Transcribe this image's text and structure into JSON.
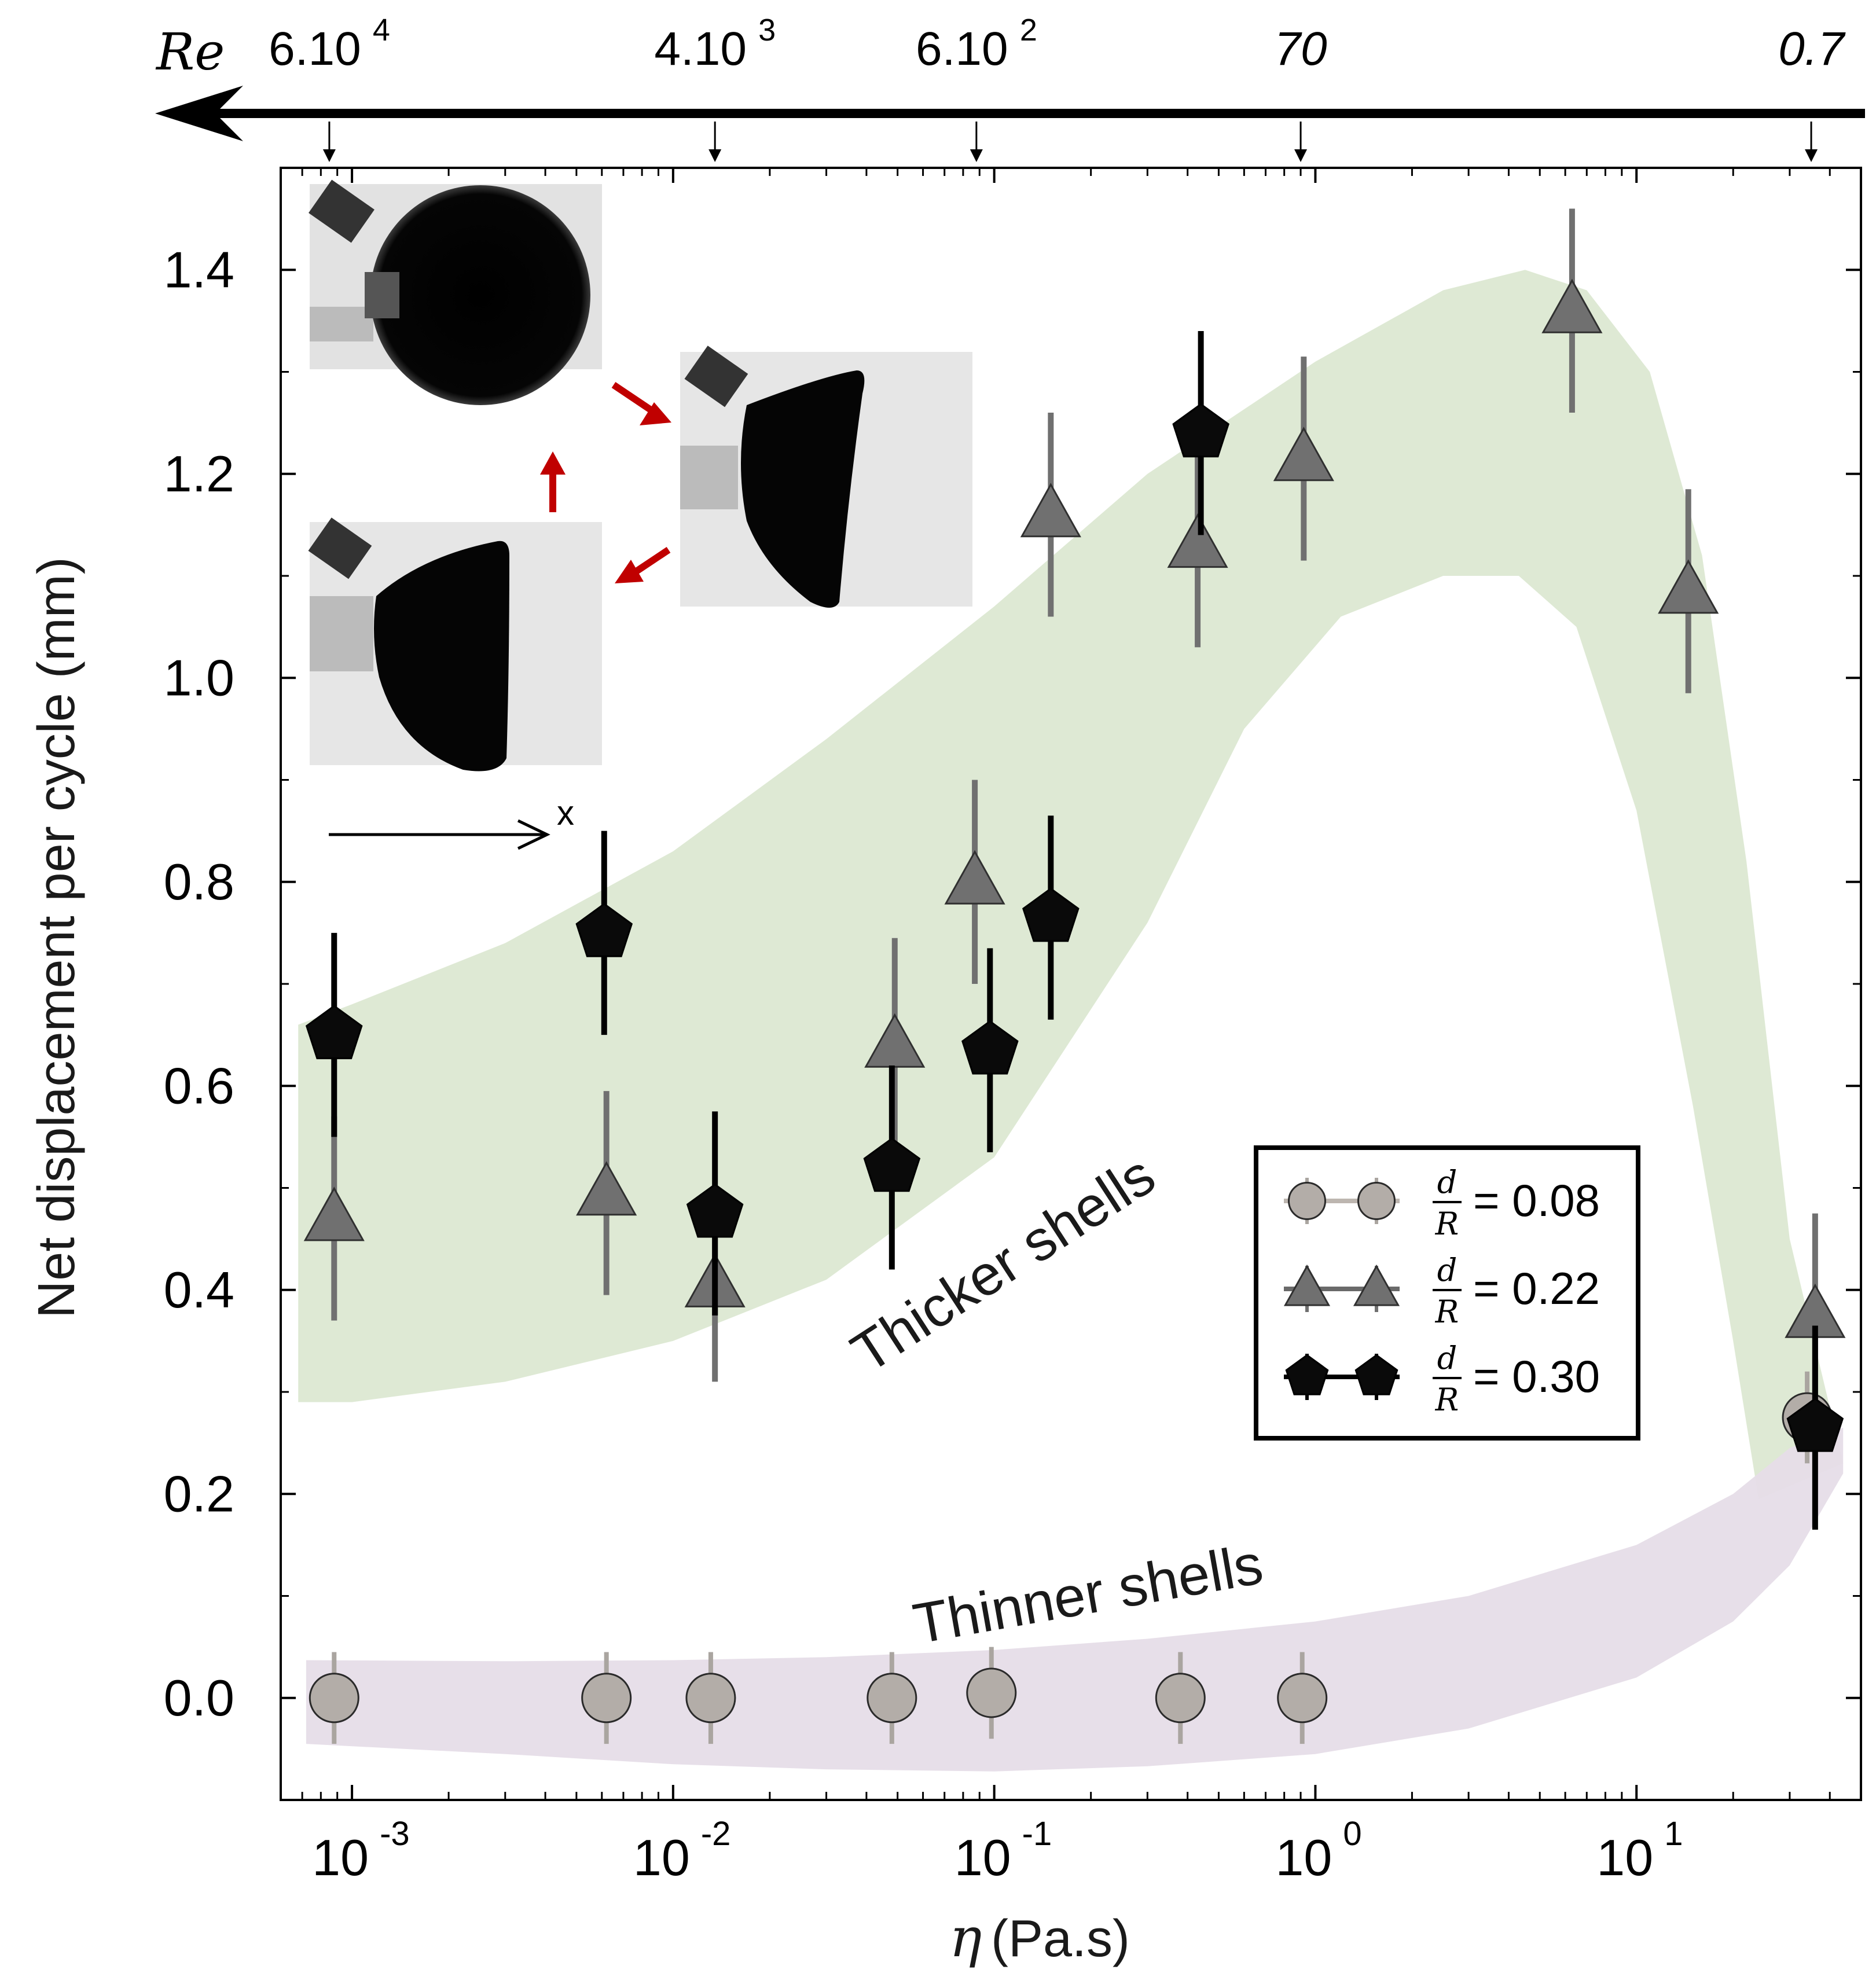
{
  "colors": {
    "thick_band": "#dce8d2",
    "thin_band": "#e6dde8",
    "circle_fill": "#b3ada8",
    "circle_err": "#aaa5a0",
    "triangle_fill": "#707070",
    "triangle_err": "#707070",
    "pentagon_fill": "#0a0a0a",
    "pentagon_err": "#000000",
    "red_arrow": "#c00000"
  },
  "chart_data": {
    "type": "scatter",
    "xscale": "log",
    "xlim": [
      0.0006,
      50
    ],
    "ylim": [
      -0.1,
      1.5
    ],
    "xlabel_symbol": "η",
    "xlabel_units": "(Pa.s)",
    "ylabel": "Net displacement per cycle (mm)",
    "yticks": [
      {
        "v": 0.0,
        "label": "0.0"
      },
      {
        "v": 0.2,
        "label": "0.2"
      },
      {
        "v": 0.4,
        "label": "0.4"
      },
      {
        "v": 0.6,
        "label": "0.6"
      },
      {
        "v": 0.8,
        "label": "0.8"
      },
      {
        "v": 1.0,
        "label": "1.0"
      },
      {
        "v": 1.2,
        "label": "1.2"
      },
      {
        "v": 1.4,
        "label": "1.4"
      }
    ],
    "xticks": [
      {
        "v": 0.001,
        "base": "10",
        "exp": "-3"
      },
      {
        "v": 0.01,
        "base": "10",
        "exp": "-2"
      },
      {
        "v": 0.1,
        "base": "10",
        "exp": "-1"
      },
      {
        "v": 1,
        "base": "10",
        "exp": "0"
      },
      {
        "v": 10,
        "base": "10",
        "exp": "1"
      }
    ],
    "re_axis": {
      "label": "Re",
      "ticks": [
        {
          "x": 0.00085,
          "base": "6.10",
          "exp": "4",
          "italic": false
        },
        {
          "x": 0.0135,
          "base": "4.10",
          "exp": "3",
          "italic": false
        },
        {
          "x": 0.088,
          "base": "6.10",
          "exp": "2",
          "italic": false
        },
        {
          "x": 0.9,
          "base": "70",
          "exp": "",
          "italic": true
        },
        {
          "x": 35,
          "base": "0.7",
          "exp": "",
          "italic": true
        }
      ]
    },
    "series": [
      {
        "name": "d/R = 0.08",
        "marker": "circle",
        "points": [
          {
            "x": 0.00088,
            "y": 0.0,
            "err": 0.045
          },
          {
            "x": 0.0062,
            "y": 0.0,
            "err": 0.045
          },
          {
            "x": 0.0131,
            "y": 0.0,
            "err": 0.045
          },
          {
            "x": 0.048,
            "y": 0.0,
            "err": 0.045
          },
          {
            "x": 0.098,
            "y": 0.005,
            "err": 0.045
          },
          {
            "x": 0.38,
            "y": 0.0,
            "err": 0.045
          },
          {
            "x": 0.91,
            "y": 0.0,
            "err": 0.045
          },
          {
            "x": 34,
            "y": 0.275,
            "err": 0.045
          }
        ]
      },
      {
        "name": "d/R = 0.22",
        "marker": "triangle",
        "points": [
          {
            "x": 0.00088,
            "y": 0.47,
            "err": 0.1
          },
          {
            "x": 0.0062,
            "y": 0.495,
            "err": 0.1
          },
          {
            "x": 0.0135,
            "y": 0.405,
            "err": 0.095
          },
          {
            "x": 0.049,
            "y": 0.64,
            "err": 0.105
          },
          {
            "x": 0.087,
            "y": 0.8,
            "err": 0.1
          },
          {
            "x": 0.15,
            "y": 1.16,
            "err": 0.1
          },
          {
            "x": 0.43,
            "y": 1.13,
            "err": 0.1
          },
          {
            "x": 0.92,
            "y": 1.215,
            "err": 0.1
          },
          {
            "x": 6.3,
            "y": 1.36,
            "err": 0.1
          },
          {
            "x": 14.5,
            "y": 1.085,
            "err": 0.1
          },
          {
            "x": 36,
            "y": 0.375,
            "err": 0.1
          }
        ]
      },
      {
        "name": "d/R = 0.30",
        "marker": "pentagon",
        "points": [
          {
            "x": 0.00088,
            "y": 0.65,
            "err": 0.1
          },
          {
            "x": 0.0061,
            "y": 0.75,
            "err": 0.1
          },
          {
            "x": 0.0135,
            "y": 0.475,
            "err": 0.1
          },
          {
            "x": 0.048,
            "y": 0.52,
            "err": 0.1
          },
          {
            "x": 0.097,
            "y": 0.635,
            "err": 0.1
          },
          {
            "x": 0.15,
            "y": 0.765,
            "err": 0.1
          },
          {
            "x": 0.44,
            "y": 1.24,
            "err": 0.1
          },
          {
            "x": 36,
            "y": 0.265,
            "err": 0.1
          }
        ]
      }
    ],
    "legend": {
      "position": "lower-right",
      "entries": [
        {
          "marker": "circle",
          "num": "d",
          "den": "R",
          "value": "= 0.08"
        },
        {
          "marker": "triangle",
          "num": "d",
          "den": "R",
          "value": "= 0.22"
        },
        {
          "marker": "pentagon",
          "num": "d",
          "den": "R",
          "value": "= 0.30"
        }
      ]
    },
    "bands": {
      "thick": {
        "label": "Thicker shells",
        "upper": [
          [
            0.00068,
            0.66
          ],
          [
            0.001,
            0.68
          ],
          [
            0.003,
            0.74
          ],
          [
            0.01,
            0.83
          ],
          [
            0.03,
            0.94
          ],
          [
            0.1,
            1.07
          ],
          [
            0.3,
            1.2
          ],
          [
            1,
            1.31
          ],
          [
            2.5,
            1.38
          ],
          [
            4.5,
            1.4
          ],
          [
            7,
            1.38
          ],
          [
            11,
            1.3
          ],
          [
            16,
            1.12
          ],
          [
            22,
            0.82
          ],
          [
            30,
            0.45
          ],
          [
            44,
            0.23
          ]
        ],
        "lower": [
          [
            0.00068,
            0.29
          ],
          [
            0.001,
            0.29
          ],
          [
            0.003,
            0.31
          ],
          [
            0.01,
            0.35
          ],
          [
            0.03,
            0.41
          ],
          [
            0.1,
            0.53
          ],
          [
            0.3,
            0.76
          ],
          [
            0.6,
            0.95
          ],
          [
            1.2,
            1.06
          ],
          [
            2.5,
            1.1
          ],
          [
            4.3,
            1.1
          ],
          [
            6.5,
            1.05
          ],
          [
            10,
            0.87
          ],
          [
            15,
            0.58
          ],
          [
            20,
            0.35
          ],
          [
            24,
            0.195
          ]
        ]
      },
      "thin": {
        "label": "Thinner shells",
        "upper": [
          [
            0.00072,
            0.037
          ],
          [
            0.003,
            0.036
          ],
          [
            0.01,
            0.037
          ],
          [
            0.03,
            0.04
          ],
          [
            0.1,
            0.047
          ],
          [
            0.3,
            0.058
          ],
          [
            1,
            0.075
          ],
          [
            3,
            0.1
          ],
          [
            10,
            0.15
          ],
          [
            20,
            0.2
          ],
          [
            30,
            0.245
          ],
          [
            44,
            0.265
          ]
        ],
        "lower": [
          [
            0.00072,
            -0.045
          ],
          [
            0.003,
            -0.055
          ],
          [
            0.01,
            -0.065
          ],
          [
            0.03,
            -0.07
          ],
          [
            0.1,
            -0.072
          ],
          [
            0.3,
            -0.067
          ],
          [
            1,
            -0.055
          ],
          [
            3,
            -0.03
          ],
          [
            10,
            0.02
          ],
          [
            20,
            0.075
          ],
          [
            30,
            0.13
          ],
          [
            44,
            0.22
          ]
        ]
      }
    }
  },
  "inset": {
    "axis_label": "x"
  }
}
